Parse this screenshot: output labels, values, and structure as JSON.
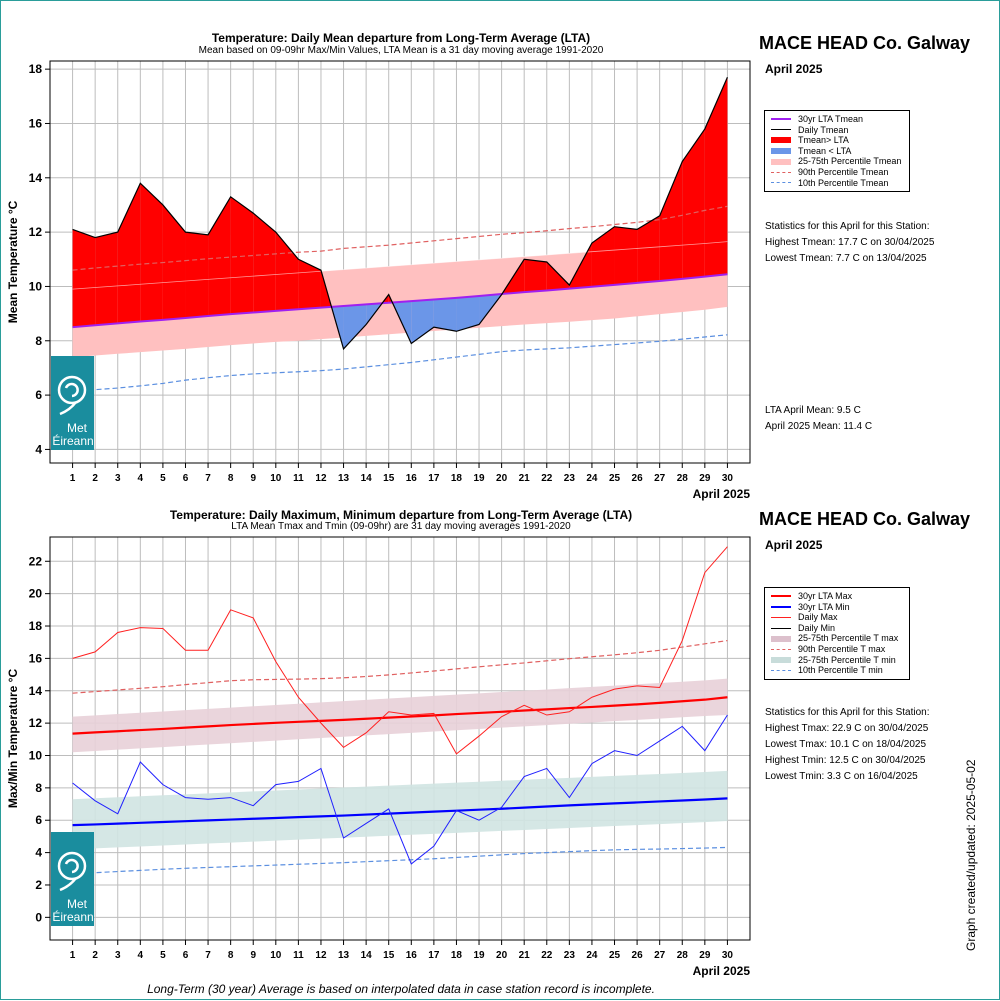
{
  "chart_data": [
    {
      "type": "area",
      "title": "Temperature: Daily Mean departure from Long-Term Average (LTA)",
      "subtitle": "Mean based on 09-09hr Max/Min Values, LTA Mean is a 31 day moving average 1991-2020",
      "ylabel": "Mean Temperature °C",
      "xlabel": "April 2025",
      "ylim": [
        3.5,
        18.3
      ],
      "xlim": [
        0,
        31
      ],
      "yticks": [
        4,
        6,
        8,
        10,
        12,
        14,
        16,
        18
      ],
      "grid": true,
      "legend_position": "right",
      "x": [
        1,
        2,
        3,
        4,
        5,
        6,
        7,
        8,
        9,
        10,
        11,
        12,
        13,
        14,
        15,
        16,
        17,
        18,
        19,
        20,
        21,
        22,
        23,
        24,
        25,
        26,
        27,
        28,
        29,
        30
      ],
      "series": [
        {
          "name": "Daily Tmean",
          "color": "#000000",
          "values": [
            12.1,
            11.8,
            12.0,
            13.8,
            13.0,
            12.0,
            11.9,
            13.3,
            12.7,
            12.0,
            11.0,
            10.6,
            7.7,
            8.6,
            9.7,
            7.9,
            8.5,
            8.35,
            8.6,
            9.7,
            11.0,
            10.9,
            10.05,
            11.6,
            12.2,
            12.1,
            12.6,
            14.6,
            15.8,
            17.7
          ]
        },
        {
          "name": "30yr LTA Tmean",
          "color": "#a020f0",
          "values": [
            8.5,
            8.57,
            8.64,
            8.71,
            8.77,
            8.84,
            8.91,
            8.98,
            9.04,
            9.1,
            9.16,
            9.22,
            9.28,
            9.34,
            9.4,
            9.46,
            9.52,
            9.58,
            9.65,
            9.72,
            9.79,
            9.85,
            9.92,
            9.99,
            10.06,
            10.13,
            10.2,
            10.28,
            10.36,
            10.45
          ]
        },
        {
          "name": "90th Percentile Tmean",
          "color": "#e06060",
          "dashed": true,
          "values": [
            10.6,
            10.68,
            10.75,
            10.82,
            10.88,
            10.95,
            11.02,
            11.08,
            11.14,
            11.2,
            11.26,
            11.3,
            11.4,
            11.46,
            11.52,
            11.6,
            11.68,
            11.76,
            11.84,
            11.92,
            11.98,
            12.05,
            12.13,
            12.2,
            12.28,
            12.36,
            12.46,
            12.62,
            12.8,
            12.95
          ]
        },
        {
          "name": "10th Percentile Tmean",
          "color": "#5b8fe0",
          "dashed": true,
          "values": [
            6.15,
            6.2,
            6.26,
            6.34,
            6.43,
            6.55,
            6.64,
            6.72,
            6.78,
            6.82,
            6.86,
            6.9,
            6.96,
            7.04,
            7.12,
            7.2,
            7.3,
            7.4,
            7.5,
            7.6,
            7.66,
            7.7,
            7.74,
            7.8,
            7.86,
            7.92,
            7.98,
            8.06,
            8.14,
            8.22
          ]
        },
        {
          "name": "25-75th Percentile Tmean",
          "color": "#ffc0c0",
          "band": true,
          "low": [
            7.4,
            7.46,
            7.52,
            7.58,
            7.64,
            7.7,
            7.77,
            7.84,
            7.9,
            7.96,
            8.0,
            8.06,
            8.12,
            8.18,
            8.24,
            8.3,
            8.36,
            8.42,
            8.48,
            8.54,
            8.6,
            8.65,
            8.7,
            8.76,
            8.82,
            8.9,
            8.98,
            9.06,
            9.14,
            9.25
          ],
          "high": [
            9.9,
            9.96,
            10.02,
            10.08,
            10.14,
            10.2,
            10.26,
            10.32,
            10.38,
            10.44,
            10.5,
            10.56,
            10.62,
            10.68,
            10.74,
            10.8,
            10.86,
            10.92,
            10.98,
            11.04,
            11.1,
            11.16,
            11.22,
            11.28,
            11.34,
            11.4,
            11.46,
            11.52,
            11.58,
            11.65
          ]
        }
      ],
      "legend": [
        {
          "label": "30yr LTA Tmean",
          "style": "line",
          "color": "#a020f0",
          "width": 2.5
        },
        {
          "label": "Daily Tmean",
          "style": "line",
          "color": "#000000",
          "width": 1
        },
        {
          "label": "Tmean> LTA",
          "style": "line",
          "color": "#ff0000",
          "width": 6
        },
        {
          "label": "Tmean < LTA",
          "style": "line",
          "color": "#6b96e8",
          "width": 6
        },
        {
          "label": "25-75th Percentile Tmean",
          "style": "line",
          "color": "#ffc0c0",
          "width": 6
        },
        {
          "label": "90th Percentile Tmean",
          "style": "dash",
          "color": "#e06060",
          "width": 1
        },
        {
          "label": "10th Percentile Tmean",
          "style": "dash",
          "color": "#5b8fe0",
          "width": 1
        }
      ]
    },
    {
      "type": "line",
      "title": "Temperature: Daily Maximum, Minimum departure from Long-Term Average (LTA)",
      "subtitle": "LTA Mean Tmax and Tmin (09-09hr) are 31 day moving averages 1991-2020",
      "ylabel": "Max/Min Temperature °C",
      "xlabel": "April 2025",
      "ylim": [
        -1.4,
        23.5
      ],
      "xlim": [
        0,
        31
      ],
      "yticks": [
        0,
        2,
        4,
        6,
        8,
        10,
        12,
        14,
        16,
        18,
        20,
        22
      ],
      "grid": true,
      "legend_position": "right",
      "x": [
        1,
        2,
        3,
        4,
        5,
        6,
        7,
        8,
        9,
        10,
        11,
        12,
        13,
        14,
        15,
        16,
        17,
        18,
        19,
        20,
        21,
        22,
        23,
        24,
        25,
        26,
        27,
        28,
        29,
        30
      ],
      "series": [
        {
          "name": "Daily Max",
          "color": "#ff2020",
          "values": [
            16.0,
            16.4,
            17.6,
            17.9,
            17.85,
            16.5,
            16.5,
            19.0,
            18.5,
            15.8,
            13.6,
            12.0,
            10.5,
            11.4,
            12.7,
            12.5,
            12.6,
            10.1,
            11.2,
            12.4,
            13.1,
            12.5,
            12.7,
            13.6,
            14.1,
            14.3,
            14.2,
            17.1,
            21.3,
            22.9
          ]
        },
        {
          "name": "Daily Min",
          "color": "#2020ff",
          "values": [
            8.3,
            7.2,
            6.4,
            9.6,
            8.2,
            7.4,
            7.3,
            7.4,
            6.9,
            8.2,
            8.4,
            9.2,
            4.9,
            5.8,
            6.7,
            3.3,
            4.4,
            6.6,
            6.0,
            6.8,
            8.7,
            9.2,
            7.4,
            9.5,
            10.3,
            10.0,
            10.9,
            11.8,
            10.3,
            12.5
          ]
        },
        {
          "name": "30yr LTA Max",
          "color": "#ff0000",
          "thick": true,
          "values": [
            11.35,
            11.43,
            11.5,
            11.57,
            11.64,
            11.72,
            11.8,
            11.88,
            11.95,
            12.02,
            12.08,
            12.14,
            12.2,
            12.27,
            12.34,
            12.41,
            12.48,
            12.56,
            12.63,
            12.7,
            12.78,
            12.85,
            12.93,
            13.0,
            13.08,
            13.16,
            13.25,
            13.35,
            13.45,
            13.6
          ]
        },
        {
          "name": "30yr LTA Min",
          "color": "#0000ff",
          "thick": true,
          "values": [
            5.7,
            5.74,
            5.79,
            5.84,
            5.89,
            5.94,
            5.99,
            6.04,
            6.09,
            6.14,
            6.19,
            6.24,
            6.29,
            6.35,
            6.41,
            6.47,
            6.53,
            6.59,
            6.65,
            6.71,
            6.78,
            6.85,
            6.92,
            6.98,
            7.04,
            7.1,
            7.16,
            7.22,
            7.28,
            7.35
          ]
        },
        {
          "name": "90th Percentile T max",
          "color": "#e06060",
          "dashed": true,
          "values": [
            13.85,
            13.95,
            14.05,
            14.15,
            14.25,
            14.38,
            14.5,
            14.62,
            14.68,
            14.7,
            14.72,
            14.75,
            14.8,
            14.88,
            14.98,
            15.1,
            15.22,
            15.35,
            15.48,
            15.6,
            15.72,
            15.85,
            15.98,
            16.1,
            16.22,
            16.35,
            16.5,
            16.7,
            16.9,
            17.1
          ]
        },
        {
          "name": "10th Percentile T min",
          "color": "#5b8fe0",
          "dashed": true,
          "values": [
            2.7,
            2.76,
            2.83,
            2.9,
            2.97,
            3.03,
            3.08,
            3.13,
            3.18,
            3.23,
            3.28,
            3.33,
            3.38,
            3.44,
            3.5,
            3.56,
            3.62,
            3.7,
            3.78,
            3.86,
            3.94,
            4.0,
            4.06,
            4.12,
            4.17,
            4.2,
            4.22,
            4.25,
            4.28,
            4.32
          ]
        },
        {
          "name": "25-75th Percentile T max",
          "color": "#e8d0d8",
          "band": true,
          "low": [
            10.2,
            10.28,
            10.36,
            10.44,
            10.52,
            10.6,
            10.68,
            10.76,
            10.84,
            10.92,
            11.0,
            11.08,
            11.16,
            11.24,
            11.32,
            11.4,
            11.48,
            11.56,
            11.64,
            11.72,
            11.8,
            11.88,
            11.96,
            12.04,
            12.12,
            12.2,
            12.28,
            12.36,
            12.44,
            12.5
          ],
          "high": [
            12.4,
            12.48,
            12.56,
            12.64,
            12.72,
            12.8,
            12.88,
            12.96,
            13.04,
            13.12,
            13.2,
            13.28,
            13.36,
            13.44,
            13.52,
            13.6,
            13.68,
            13.76,
            13.84,
            13.92,
            14.0,
            14.08,
            14.16,
            14.24,
            14.32,
            14.4,
            14.48,
            14.56,
            14.64,
            14.75
          ]
        },
        {
          "name": "25-75th Percentile T min",
          "color": "#d0e4e2",
          "band": true,
          "low": [
            4.2,
            4.26,
            4.32,
            4.38,
            4.44,
            4.5,
            4.56,
            4.62,
            4.68,
            4.74,
            4.8,
            4.86,
            4.92,
            4.98,
            5.04,
            5.1,
            5.16,
            5.22,
            5.28,
            5.34,
            5.4,
            5.46,
            5.52,
            5.58,
            5.64,
            5.7,
            5.76,
            5.82,
            5.88,
            5.95
          ],
          "high": [
            7.3,
            7.36,
            7.42,
            7.48,
            7.54,
            7.6,
            7.66,
            7.72,
            7.78,
            7.84,
            7.9,
            7.96,
            8.02,
            8.08,
            8.14,
            8.2,
            8.26,
            8.32,
            8.38,
            8.44,
            8.5,
            8.56,
            8.62,
            8.68,
            8.74,
            8.8,
            8.86,
            8.92,
            8.98,
            9.05
          ]
        }
      ],
      "legend": [
        {
          "label": "30yr LTA Max",
          "style": "line",
          "color": "#ff0000",
          "width": 2.5
        },
        {
          "label": "30yr LTA Min",
          "style": "line",
          "color": "#0000ff",
          "width": 2.5
        },
        {
          "label": "Daily Max",
          "style": "line",
          "color": "#ff2020",
          "width": 1
        },
        {
          "label": "Daily Min",
          "style": "line",
          "color": "#000000",
          "width": 1
        },
        {
          "label": "25-75th Percentile T max",
          "style": "line",
          "color": "#dcc0cc",
          "width": 6
        },
        {
          "label": "90th Percentile T max",
          "style": "dash",
          "color": "#e06060",
          "width": 1
        },
        {
          "label": "25-75th Percentile T min",
          "style": "line",
          "color": "#c8dcda",
          "width": 6
        },
        {
          "label": "10th Percentile T min",
          "style": "dash",
          "color": "#5b8fe0",
          "width": 1
        }
      ]
    }
  ],
  "panels": [
    {
      "station": "MACE HEAD Co. Galway",
      "month": "April 2025",
      "stats_heading": "Statistics for this April for this Station:",
      "stats": [
        "Highest Tmean: 17.7 C on 30/04/2025",
        "Lowest Tmean: 7.7 C on 13/04/2025"
      ],
      "means": [
        "LTA April Mean: 9.5 C",
        "April 2025 Mean: 11.4 C"
      ]
    },
    {
      "station": "MACE HEAD Co. Galway",
      "month": "April 2025",
      "stats_heading": "Statistics for this April for this Station:",
      "stats": [
        "Highest Tmax: 22.9 C on 30/04/2025",
        "Lowest Tmax: 10.1 C on 18/04/2025",
        "Highest Tmin: 12.5 C on 30/04/2025",
        "Lowest Tmin: 3.3 C on 16/04/2025"
      ]
    }
  ],
  "logo": {
    "text_line1": "Met",
    "text_line2": "Éireann",
    "color": "#1a8d9e"
  },
  "footnote": "Long-Term (30 year) Average is based on interpolated data in case station record is incomplete.",
  "updated": "Graph created/updated:  2025-05-02"
}
